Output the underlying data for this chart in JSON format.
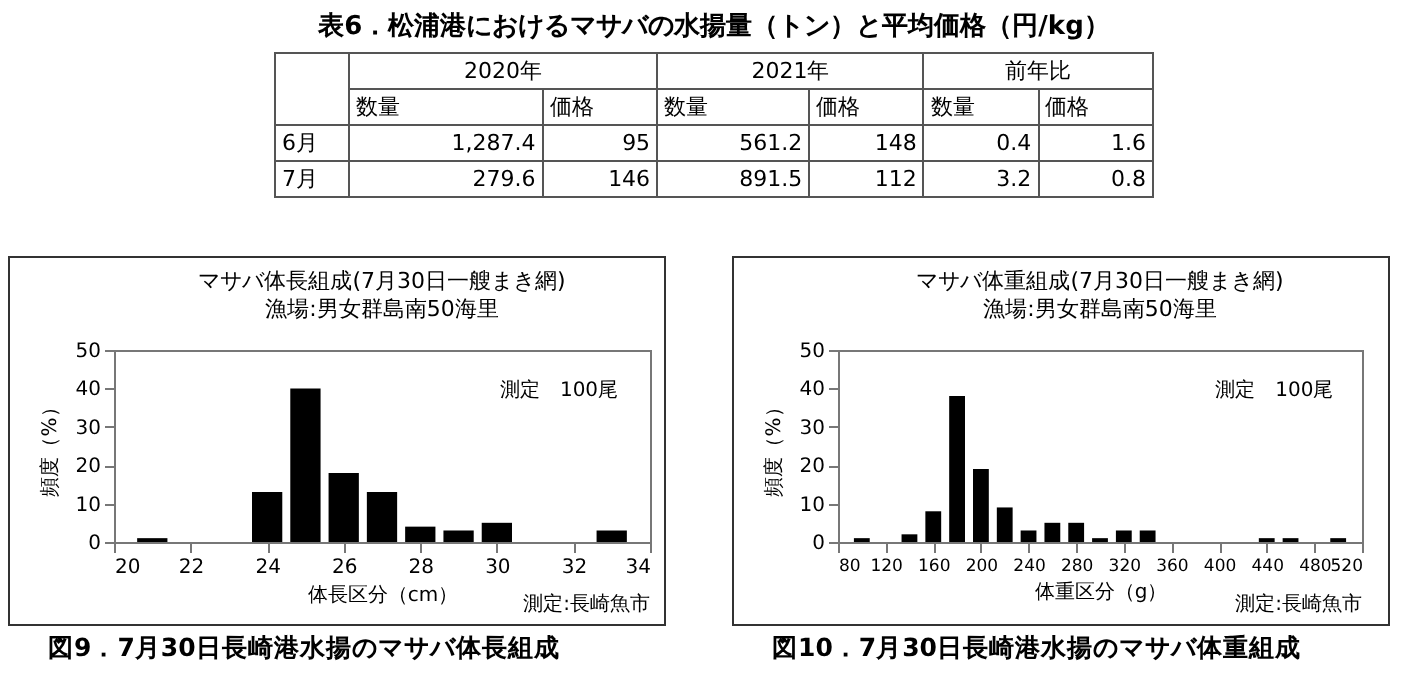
{
  "chart_data": [
    {
      "type": "other",
      "title": "表6．松浦港におけるマサバの水揚量（トン）と平均価格（円/kg）",
      "annotations": [
        "2020年",
        "2021年",
        "前年比",
        "数量",
        "価格",
        "数量",
        "価格",
        "数量",
        "価格",
        "6月",
        "1,287.4",
        "95",
        "561.2",
        "148",
        "0.4",
        "1.6",
        "7月",
        "279.6",
        "146",
        "891.5",
        "112",
        "3.2",
        "0.8"
      ]
    },
    {
      "type": "histogram",
      "title": "マサバ体長組成(7月30日一艘まき網)",
      "subtitle": "漁場:男女群島南50海里",
      "xlabel": "体長区分（cm）",
      "ylabel": "頻度（%）",
      "bins": [
        20.5,
        21.5,
        22.5,
        23.5,
        24.5,
        25.5,
        26.5,
        27.5,
        28.5,
        29.5,
        30.5,
        31.5,
        32.5,
        33.5
      ],
      "values": [
        1,
        0,
        0,
        13,
        40,
        18,
        13,
        4,
        3,
        5,
        0,
        0,
        3
      ],
      "color": "#000000",
      "xlim": [
        20,
        34
      ],
      "xticks": [
        20,
        22,
        24,
        26,
        28,
        30,
        32,
        34
      ],
      "ylim": [
        0,
        50
      ],
      "yticks": [
        0,
        10,
        20,
        30,
        40,
        50
      ],
      "grid": false,
      "annotations": [
        "測定　100尾",
        "測定:長崎魚市",
        "図9．7月30日長崎港水揚のマサバ体長組成"
      ]
    },
    {
      "type": "histogram",
      "title": "マサバ体重組成(7月30日一艘まき網)",
      "subtitle": "漁場:男女群島南50海里",
      "xlabel": "体重区分（g）",
      "ylabel": "頻度（%）",
      "bins": [
        90,
        110,
        130,
        150,
        170,
        190,
        210,
        230,
        250,
        270,
        290,
        310,
        330,
        350,
        370,
        390,
        410,
        430,
        450,
        470,
        490,
        510
      ],
      "values": [
        1,
        0,
        2,
        8,
        38,
        19,
        9,
        3,
        5,
        5,
        1,
        3,
        3,
        0,
        0,
        0,
        0,
        1,
        1,
        0,
        1
      ],
      "color": "#000000",
      "xlim": [
        80,
        520
      ],
      "xticks": [
        80,
        120,
        160,
        200,
        240,
        280,
        320,
        360,
        400,
        440,
        480,
        520
      ],
      "ylim": [
        0,
        50
      ],
      "yticks": [
        0,
        10,
        20,
        30,
        40,
        50
      ],
      "grid": false,
      "annotations": [
        "測定　100尾",
        "測定:長崎魚市",
        "図10．7月30日長崎港水揚のマサバ体重組成"
      ]
    }
  ]
}
